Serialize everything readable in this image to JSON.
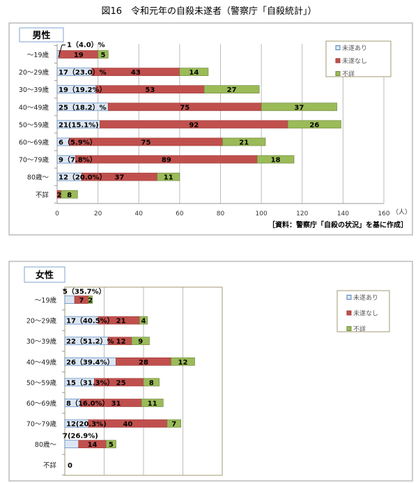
{
  "title": "図16　令和元年の自殺未遂者（警察庁「自殺統計」）",
  "colors": {
    "attempted": "#dce6f2",
    "attempted_border": "#4f81bd",
    "not_attempted": "#c0504d",
    "unknown": "#9bbb59"
  },
  "chart_data": [
    {
      "type": "bar",
      "orientation": "horizontal",
      "stacked": true,
      "title": "男性",
      "categories": [
        "～19歳",
        "20～29歳",
        "30～39歳",
        "40～49歳",
        "50～59歳",
        "60～69歳",
        "70～79歳",
        "80歳～",
        "不詳"
      ],
      "series": [
        {
          "name": "未遂あり",
          "values": [
            1,
            17,
            19,
            25,
            21,
            6,
            9,
            12,
            0
          ]
        },
        {
          "name": "未遂なし",
          "values": [
            19,
            43,
            53,
            75,
            92,
            75,
            89,
            37,
            2
          ]
        },
        {
          "name": "不詳",
          "values": [
            5,
            14,
            27,
            37,
            26,
            21,
            18,
            11,
            8
          ]
        }
      ],
      "attempted_labels": [
        "1（4.0）%",
        "17（23.0）%",
        "19（19.2%）",
        "25（18.2）%",
        "21(15.1%)",
        "6（5.9%）",
        "9（7.8%）",
        "12（20.0%）",
        ""
      ],
      "xticks": [
        "0",
        "20",
        "40",
        "60",
        "80",
        "100",
        "120",
        "140",
        "160"
      ],
      "xlim": [
        0,
        160
      ],
      "xunit": "（人）",
      "source": "［資料：警察庁「自殺の状況」を基に作成］",
      "legend": [
        "未遂あり",
        "未遂なし",
        "不詳"
      ],
      "legend_position": "top-right",
      "grid": true
    },
    {
      "type": "bar",
      "orientation": "horizontal",
      "stacked": true,
      "title": "女性",
      "categories": [
        "～19歳",
        "20～29歳",
        "30～39歳",
        "40～49歳",
        "50～59歳",
        "60～69歳",
        "70～79歳",
        "80歳～",
        "不詳"
      ],
      "series": [
        {
          "name": "未遂あり",
          "values": [
            5,
            17,
            22,
            26,
            15,
            8,
            12,
            7,
            0
          ]
        },
        {
          "name": "未遂なし",
          "values": [
            7,
            21,
            12,
            28,
            25,
            31,
            40,
            14,
            0
          ]
        },
        {
          "name": "不詳",
          "values": [
            2,
            4,
            9,
            12,
            8,
            11,
            7,
            5,
            0
          ]
        }
      ],
      "attempted_labels": [
        "5（35.7%）",
        "17（40.5%）",
        "22（51.2）%",
        "26（39.4%）",
        "15（31.3%）",
        "8（16.0%）",
        "12(20.3%)",
        "7(26.9%)",
        "0"
      ],
      "xlim": [
        0,
        80
      ],
      "legend": [
        "未遂あり",
        "未遂なし",
        "不詳"
      ],
      "legend_position": "top-right",
      "grid": true
    }
  ]
}
